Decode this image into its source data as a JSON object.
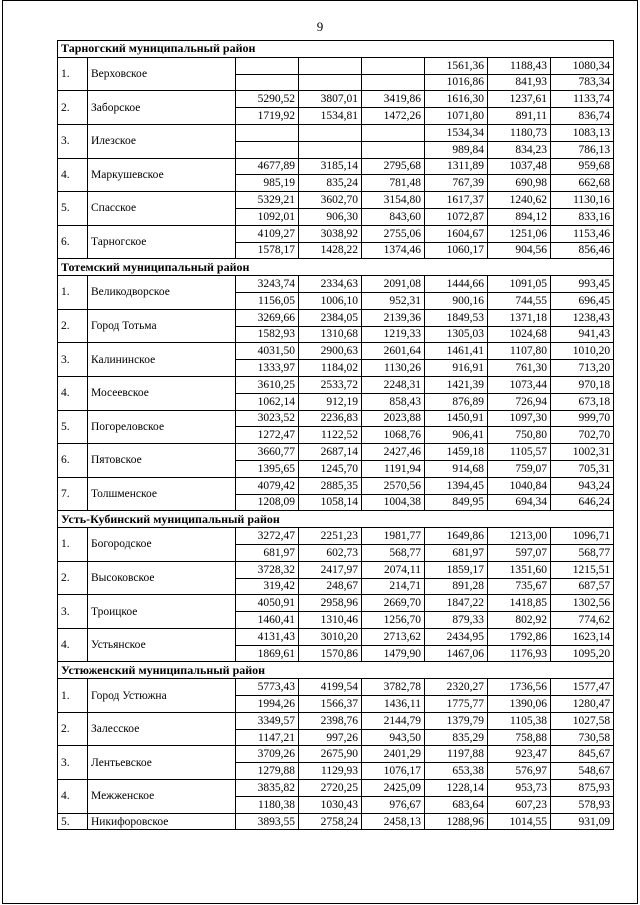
{
  "page": {
    "number": "9"
  },
  "table": {
    "sections": [
      {
        "title": "Тарногский муниципальный район",
        "entries": [
          {
            "num": "1.",
            "name": "Верховское",
            "rows": [
              [
                "",
                "",
                "",
                "1561,36",
                "1188,43",
                "1080,34"
              ],
              [
                "",
                "",
                "",
                "1016,86",
                "841,93",
                "783,34"
              ]
            ]
          },
          {
            "num": "2.",
            "name": "Заборское",
            "rows": [
              [
                "5290,52",
                "3807,01",
                "3419,86",
                "1616,30",
                "1237,61",
                "1133,74"
              ],
              [
                "1719,92",
                "1534,81",
                "1472,26",
                "1071,80",
                "891,11",
                "836,74"
              ]
            ]
          },
          {
            "num": "3.",
            "name": "Илезское",
            "rows": [
              [
                "",
                "",
                "",
                "1534,34",
                "1180,73",
                "1083,13"
              ],
              [
                "",
                "",
                "",
                "989,84",
                "834,23",
                "786,13"
              ]
            ]
          },
          {
            "num": "4.",
            "name": "Маркушевское",
            "rows": [
              [
                "4677,89",
                "3185,14",
                "2795,68",
                "1311,89",
                "1037,48",
                "959,68"
              ],
              [
                "985,19",
                "835,24",
                "781,48",
                "767,39",
                "690,98",
                "662,68"
              ]
            ]
          },
          {
            "num": "5.",
            "name": "Спасское",
            "rows": [
              [
                "5329,21",
                "3602,70",
                "3154,80",
                "1617,37",
                "1240,62",
                "1130,16"
              ],
              [
                "1092,01",
                "906,30",
                "843,60",
                "1072,87",
                "894,12",
                "833,16"
              ]
            ]
          },
          {
            "num": "6.",
            "name": "Тарногское",
            "rows": [
              [
                "4109,27",
                "3038,92",
                "2755,06",
                "1604,67",
                "1251,06",
                "1153,46"
              ],
              [
                "1578,17",
                "1428,22",
                "1374,46",
                "1060,17",
                "904,56",
                "856,46"
              ]
            ]
          }
        ]
      },
      {
        "title": "Тотемский муниципальный район",
        "entries": [
          {
            "num": "1.",
            "name": "Великодворское",
            "rows": [
              [
                "3243,74",
                "2334,63",
                "2091,08",
                "1444,66",
                "1091,05",
                "993,45"
              ],
              [
                "1156,05",
                "1006,10",
                "952,31",
                "900,16",
                "744,55",
                "696,45"
              ]
            ]
          },
          {
            "num": "2.",
            "name": "Город Тотьма",
            "rows": [
              [
                "3269,66",
                "2384,05",
                "2139,36",
                "1849,53",
                "1371,18",
                "1238,43"
              ],
              [
                "1582,93",
                "1310,68",
                "1219,33",
                "1305,03",
                "1024,68",
                "941,43"
              ]
            ]
          },
          {
            "num": "3.",
            "name": "Калининское",
            "rows": [
              [
                "4031,50",
                "2900,63",
                "2601,64",
                "1461,41",
                "1107,80",
                "1010,20"
              ],
              [
                "1333,97",
                "1184,02",
                "1130,26",
                "916,91",
                "761,30",
                "713,20"
              ]
            ]
          },
          {
            "num": "4.",
            "name": "Мосеевское",
            "rows": [
              [
                "3610,25",
                "2533,72",
                "2248,31",
                "1421,39",
                "1073,44",
                "970,18"
              ],
              [
                "1062,14",
                "912,19",
                "858,43",
                "876,89",
                "726,94",
                "673,18"
              ]
            ]
          },
          {
            "num": "5.",
            "name": "Погореловское",
            "rows": [
              [
                "3023,52",
                "2236,83",
                "2023,88",
                "1450,91",
                "1097,30",
                "999,70"
              ],
              [
                "1272,47",
                "1122,52",
                "1068,76",
                "906,41",
                "750,80",
                "702,70"
              ]
            ]
          },
          {
            "num": "6.",
            "name": "Пятовское",
            "rows": [
              [
                "3660,77",
                "2687,14",
                "2427,46",
                "1459,18",
                "1105,57",
                "1002,31"
              ],
              [
                "1395,65",
                "1245,70",
                "1191,94",
                "914,68",
                "759,07",
                "705,31"
              ]
            ]
          },
          {
            "num": "7.",
            "name": "Толшменское",
            "rows": [
              [
                "4079,42",
                "2885,35",
                "2570,56",
                "1394,45",
                "1040,84",
                "943,24"
              ],
              [
                "1208,09",
                "1058,14",
                "1004,38",
                "849,95",
                "694,34",
                "646,24"
              ]
            ]
          }
        ]
      },
      {
        "title": "Усть-Кубинский муниципальный район",
        "entries": [
          {
            "num": "1.",
            "name": "Богородское",
            "rows": [
              [
                "3272,47",
                "2251,23",
                "1981,77",
                "1649,86",
                "1213,00",
                "1096,71"
              ],
              [
                "681,97",
                "602,73",
                "568,77",
                "681,97",
                "597,07",
                "568,77"
              ]
            ]
          },
          {
            "num": "2.",
            "name": "Высоковское",
            "rows": [
              [
                "3728,32",
                "2417,97",
                "2074,11",
                "1859,17",
                "1351,60",
                "1215,51"
              ],
              [
                "319,42",
                "248,67",
                "214,71",
                "891,28",
                "735,67",
                "687,57"
              ]
            ]
          },
          {
            "num": "3.",
            "name": "Троицкое",
            "rows": [
              [
                "4050,91",
                "2958,96",
                "2669,70",
                "1847,22",
                "1418,85",
                "1302,56"
              ],
              [
                "1460,41",
                "1310,46",
                "1256,70",
                "879,33",
                "802,92",
                "774,62"
              ]
            ]
          },
          {
            "num": "4.",
            "name": "Устьянское",
            "rows": [
              [
                "4131,43",
                "3010,20",
                "2713,62",
                "2434,95",
                "1792,86",
                "1623,14"
              ],
              [
                "1869,61",
                "1570,86",
                "1479,90",
                "1467,06",
                "1176,93",
                "1095,20"
              ]
            ]
          }
        ]
      },
      {
        "title": "Устюженский муниципальный район",
        "entries": [
          {
            "num": "1.",
            "name": "Город Устюжна",
            "rows": [
              [
                "5773,43",
                "4199,54",
                "3782,78",
                "2320,27",
                "1736,56",
                "1577,47"
              ],
              [
                "1994,26",
                "1566,37",
                "1436,11",
                "1775,77",
                "1390,06",
                "1280,47"
              ]
            ]
          },
          {
            "num": "2.",
            "name": "Залесское",
            "rows": [
              [
                "3349,57",
                "2398,76",
                "2144,79",
                "1379,79",
                "1105,38",
                "1027,58"
              ],
              [
                "1147,21",
                "997,26",
                "943,50",
                "835,29",
                "758,88",
                "730,58"
              ]
            ]
          },
          {
            "num": "3.",
            "name": "Лентьевское",
            "rows": [
              [
                "3709,26",
                "2675,90",
                "2401,29",
                "1197,88",
                "923,47",
                "845,67"
              ],
              [
                "1279,88",
                "1129,93",
                "1076,17",
                "653,38",
                "576,97",
                "548,67"
              ]
            ]
          },
          {
            "num": "4.",
            "name": "Межженское",
            "rows": [
              [
                "3835,82",
                "2720,25",
                "2425,09",
                "1228,14",
                "953,73",
                "875,93"
              ],
              [
                "1180,38",
                "1030,43",
                "976,67",
                "683,64",
                "607,23",
                "578,93"
              ]
            ]
          },
          {
            "num": "5.",
            "name": "Никифоровское",
            "rows": [
              [
                "3893,55",
                "2758,24",
                "2458,13",
                "1288,96",
                "1014,55",
                "931,09"
              ]
            ]
          }
        ]
      }
    ]
  }
}
